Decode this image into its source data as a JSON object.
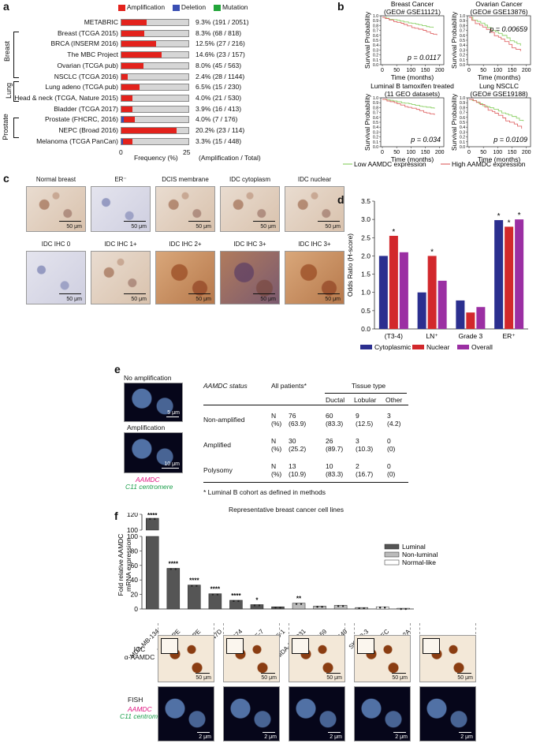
{
  "panels": {
    "a": "a",
    "b": "b",
    "c": "c",
    "d": "d",
    "e": "e",
    "f": "f"
  },
  "panel_a": {
    "legend": [
      {
        "label": "Amplification",
        "color": "#e3221c"
      },
      {
        "label": "Deletion",
        "color": "#3a4fb3"
      },
      {
        "label": "Mutation",
        "color": "#22a53a"
      }
    ],
    "groups": [
      "Breast",
      "Lung",
      "Prostate"
    ],
    "xaxis": {
      "start": "0",
      "label": "Frequency (%)",
      "end": "25",
      "right_label": "(Amplification / Total)"
    },
    "rows": [
      {
        "name": "METABRIC",
        "amp": 9.3,
        "del": 0,
        "text": "9.3% (191 / 2051)"
      },
      {
        "name": "Breast (TCGA 2015)",
        "amp": 8.3,
        "del": 0,
        "text": "8.3% (68 / 818)"
      },
      {
        "name": "BRCA (INSERM 2016)",
        "amp": 12.5,
        "del": 0,
        "text": "12.5% (27 / 216)"
      },
      {
        "name": "The MBC Project",
        "amp": 14.6,
        "del": 0,
        "text": "14.6% (23 / 157)"
      },
      {
        "name": "Ovarian (TCGA pub)",
        "amp": 8.0,
        "del": 0,
        "text": "8.0% (45 / 563)"
      },
      {
        "name": "NSCLC (TCGA 2016)",
        "amp": 2.4,
        "del": 0,
        "text": "2.4% (28 / 1144)"
      },
      {
        "name": "Lung adeno (TCGA pub)",
        "amp": 6.5,
        "del": 0,
        "text": "6.5% (15 / 230)"
      },
      {
        "name": "Head & neck (TCGA, Nature 2015)",
        "amp": 4.0,
        "del": 0,
        "text": "4.0% (21 / 530)"
      },
      {
        "name": "Bladder (TCGA 2017)",
        "amp": 3.9,
        "del": 0,
        "text": "3.9% (16 / 413)"
      },
      {
        "name": "Prostate (FHCRC, 2016)",
        "amp": 4.0,
        "del": 0.8,
        "text": "4.0% (7 / 176)"
      },
      {
        "name": "NEPC (Broad 2016)",
        "amp": 20.2,
        "del": 0,
        "text": "20.2% (23 / 114)"
      },
      {
        "name": "Melanoma (TCGA PanCan)",
        "amp": 3.3,
        "del": 0.6,
        "text": "3.3% (15 / 448)"
      }
    ]
  },
  "panel_b": {
    "plots": [
      {
        "title1": "Breast Cancer",
        "title2": "(GEO# GSE11121)",
        "p": "p = 0.0117"
      },
      {
        "title1": "Ovarian Cancer",
        "title2": "(GEO# GSE13876)",
        "p": "p = 0.00659"
      },
      {
        "title1": "Luminal B tamoxifen treated",
        "title2": "(11 GEO datasets)",
        "p": "p = 0.034"
      },
      {
        "title1": "Lung NSCLC",
        "title2": "(GEO# GSE19188)",
        "p": "p = 0.0109"
      }
    ],
    "ylabel": "Survival Probability",
    "xlabel": "Time (months)",
    "yticks": [
      "0.0",
      "0.1",
      "0.2",
      "0.3",
      "0.4",
      "0.5",
      "0.6",
      "0.7",
      "0.8",
      "0.9",
      "1.0"
    ],
    "xticks": [
      "0",
      "50",
      "100",
      "150",
      "200"
    ],
    "legend_low": "Low AAMDC expression",
    "legend_high": "High AAMDC expression",
    "low_color": "#8fd16a",
    "high_color": "#e06a6a"
  },
  "panel_c": {
    "row1": [
      "Normal breast",
      "ER⁻",
      "DCIS membrane",
      "IDC cytoplasm",
      "IDC nuclear"
    ],
    "row2": [
      "IDC IHC 0",
      "IDC IHC 1+",
      "IDC IHC 2+",
      "IDC IHC 3+",
      "IDC IHC 3+"
    ],
    "scale": "50 μm"
  },
  "chart_data": {
    "type": "bar",
    "categories": [
      "(T3-4)",
      "LN⁺",
      "Grade 3",
      "ER⁺"
    ],
    "series": [
      {
        "name": "Cytoplasmic",
        "color": "#2b2f8f",
        "values": [
          2.0,
          1.0,
          0.78,
          2.98
        ]
      },
      {
        "name": "Nuclear",
        "color": "#d2282c",
        "values": [
          2.55,
          2.0,
          0.45,
          2.8
        ]
      },
      {
        "name": "Overall",
        "color": "#9b2fa3",
        "values": [
          2.1,
          1.32,
          0.6,
          3.0
        ]
      }
    ],
    "ylabel": "Odds Ratio (H-score)",
    "ylim": [
      0,
      3.5
    ],
    "yticks": [
      "0.0",
      "0.5",
      "1.0",
      "1.5",
      "2.0",
      "2.5",
      "3.0",
      "3.5"
    ],
    "asterisks": [
      {
        "category": 0,
        "series": 1,
        "label": "*"
      },
      {
        "category": 1,
        "series": 1,
        "label": "*"
      },
      {
        "category": 3,
        "series": 0,
        "label": "*"
      },
      {
        "category": 3,
        "series": 1,
        "label": "*"
      },
      {
        "category": 3,
        "series": 2,
        "label": "*"
      }
    ]
  },
  "panel_e": {
    "img_top": "No amplification",
    "img_bottom": "Amplification",
    "scale_top": "5 μm",
    "scale_bottom": "10 μm",
    "gene": "AAMDC",
    "centromere": "C11 centromere",
    "table": {
      "h_status": "AAMDC status",
      "h_all": "All patients*",
      "h_tissue": "Tissue type",
      "h_ductal": "Ductal",
      "h_lobular": "Lobular",
      "h_other": "Other",
      "rows": [
        {
          "status": "Non-amplified",
          "n": "N",
          "pct": "(%)",
          "all_n": "76",
          "all_p": "(63.9)",
          "duc_n": "60",
          "duc_p": "(83.3)",
          "lob_n": "9",
          "lob_p": "(12.5)",
          "oth_n": "3",
          "oth_p": "(4.2)"
        },
        {
          "status": "Amplified",
          "n": "N",
          "pct": "(%)",
          "all_n": "30",
          "all_p": "(25.2)",
          "duc_n": "26",
          "duc_p": "(89.7)",
          "lob_n": "3",
          "lob_p": "(10.3)",
          "oth_n": "0",
          "oth_p": "(0)"
        },
        {
          "status": "Polysomy",
          "n": "N",
          "pct": "(%)",
          "all_n": "13",
          "all_p": "(10.9)",
          "duc_n": "10",
          "duc_p": "(83.3)",
          "lob_n": "2",
          "lob_p": "(16.7)",
          "oth_n": "0",
          "oth_p": "(0)"
        }
      ],
      "footnote": "* Luminal B cohort as defined in methods"
    }
  },
  "panel_f": {
    "title": "Representative breast cancer cell lines",
    "ylabel_1": "Fold relative AAMDC",
    "ylabel_2": "mRNA expression",
    "yticks_low": [
      "0",
      "20",
      "40",
      "60",
      "80",
      "100"
    ],
    "yticks_high": [
      "100",
      "120"
    ],
    "legend": [
      {
        "label": "Luminal",
        "color": "#555555"
      },
      {
        "label": "Non-luminal",
        "color": "#bbbbbb"
      },
      {
        "label": "Normal-like",
        "color": "#ffffff"
      }
    ],
    "bars": [
      {
        "name": "MDA-MB-134",
        "value": 115,
        "type": "lum",
        "sig": "****"
      },
      {
        "name": "SUM52PE",
        "value": 56,
        "type": "lum",
        "sig": "****"
      },
      {
        "name": "SUM44PE",
        "value": 33,
        "type": "lum",
        "sig": "****"
      },
      {
        "name": "T-47D",
        "value": 21,
        "type": "lum",
        "sig": "****"
      },
      {
        "name": "BT-474",
        "value": 12,
        "type": "lum",
        "sig": "****"
      },
      {
        "name": "MCF-7",
        "value": 6,
        "type": "lum",
        "sig": "*"
      },
      {
        "name": "ZR-75-1",
        "value": 3,
        "type": "lum",
        "sig": ""
      },
      {
        "name": "MDA-MB-231",
        "value": 8,
        "type": "non",
        "sig": "**"
      },
      {
        "name": "SUM-159",
        "value": 4,
        "type": "non",
        "sig": ""
      },
      {
        "name": "BT-549",
        "value": 5,
        "type": "non",
        "sig": ""
      },
      {
        "name": "SK-BR-3",
        "value": 2,
        "type": "non",
        "sig": ""
      },
      {
        "name": "HuMEC",
        "value": 3,
        "type": "norm",
        "sig": ""
      },
      {
        "name": "MCF-12A",
        "value": 1,
        "type": "norm",
        "sig": ""
      }
    ],
    "icc_label_1": "ICC",
    "icc_label_2": "α-AAMDC",
    "fish_label": "FISH",
    "gene": "AAMDC",
    "centromere": "C11 centromere",
    "icc_scale": "50 μm",
    "fish_scale": "2 μm"
  }
}
